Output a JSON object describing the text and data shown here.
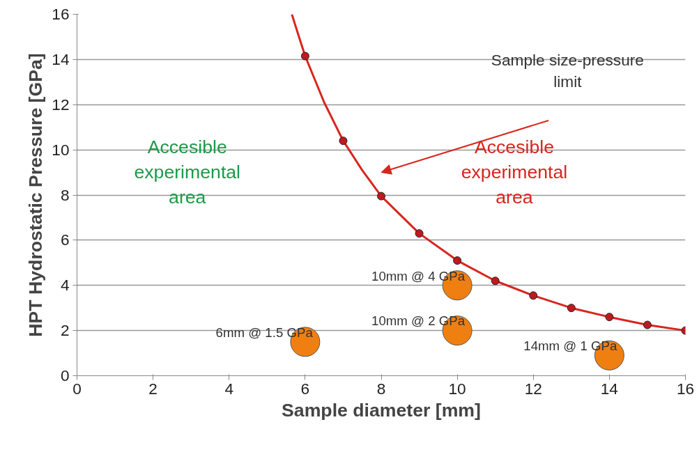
{
  "chart_data": {
    "type": "scatter",
    "xlabel": "Sample diameter [mm]",
    "ylabel": "HPT Hydrostatic Pressure [GPa]",
    "xlim": [
      0,
      16
    ],
    "ylim": [
      0,
      16
    ],
    "xticks": [
      0,
      2,
      4,
      6,
      8,
      10,
      12,
      14,
      16
    ],
    "yticks": [
      0,
      2,
      4,
      6,
      8,
      10,
      12,
      14,
      16
    ],
    "grid": "y",
    "series": [
      {
        "type": "line",
        "marker": "none",
        "color": "#d7261e",
        "x": [
          5.65,
          5.8,
          6,
          6.5,
          7,
          7.5,
          8,
          9,
          10,
          11,
          12,
          13,
          14,
          15,
          16
        ],
        "values": [
          16,
          15.2,
          14.15,
          12.1,
          10.4,
          9.1,
          7.95,
          6.3,
          5.1,
          4.2,
          3.55,
          3.0,
          2.6,
          2.25,
          2.0
        ]
      },
      {
        "marker": "circle",
        "color": "#c0191f",
        "x": [
          6,
          7,
          8,
          9,
          10,
          11,
          12,
          13,
          14,
          15,
          16
        ],
        "values": [
          14.15,
          10.4,
          7.95,
          6.3,
          5.1,
          4.2,
          3.55,
          3.0,
          2.6,
          2.25,
          2.0
        ]
      },
      {
        "type": "bubble",
        "marker": "circle",
        "color": "#f07f12",
        "x": [
          6,
          10,
          10,
          14
        ],
        "values": [
          1.5,
          4,
          2,
          0.9
        ],
        "sizes": [
          1,
          1,
          1,
          1
        ]
      }
    ],
    "annotations": [
      {
        "text": "6mm @ 1.5 GPa",
        "x": 6,
        "y": 1.5
      },
      {
        "text": "10mm @ 4 GPa",
        "x": 10,
        "y": 4
      },
      {
        "text": "10mm @ 2 GPa",
        "x": 10,
        "y": 2
      },
      {
        "text": "14mm @ 1 GPa",
        "x": 14,
        "y": 0.9
      },
      "Accesible\nexperimental\narea",
      "Accesible\nexperimental\narea",
      "Sample size-pressure\nlimit"
    ]
  }
}
